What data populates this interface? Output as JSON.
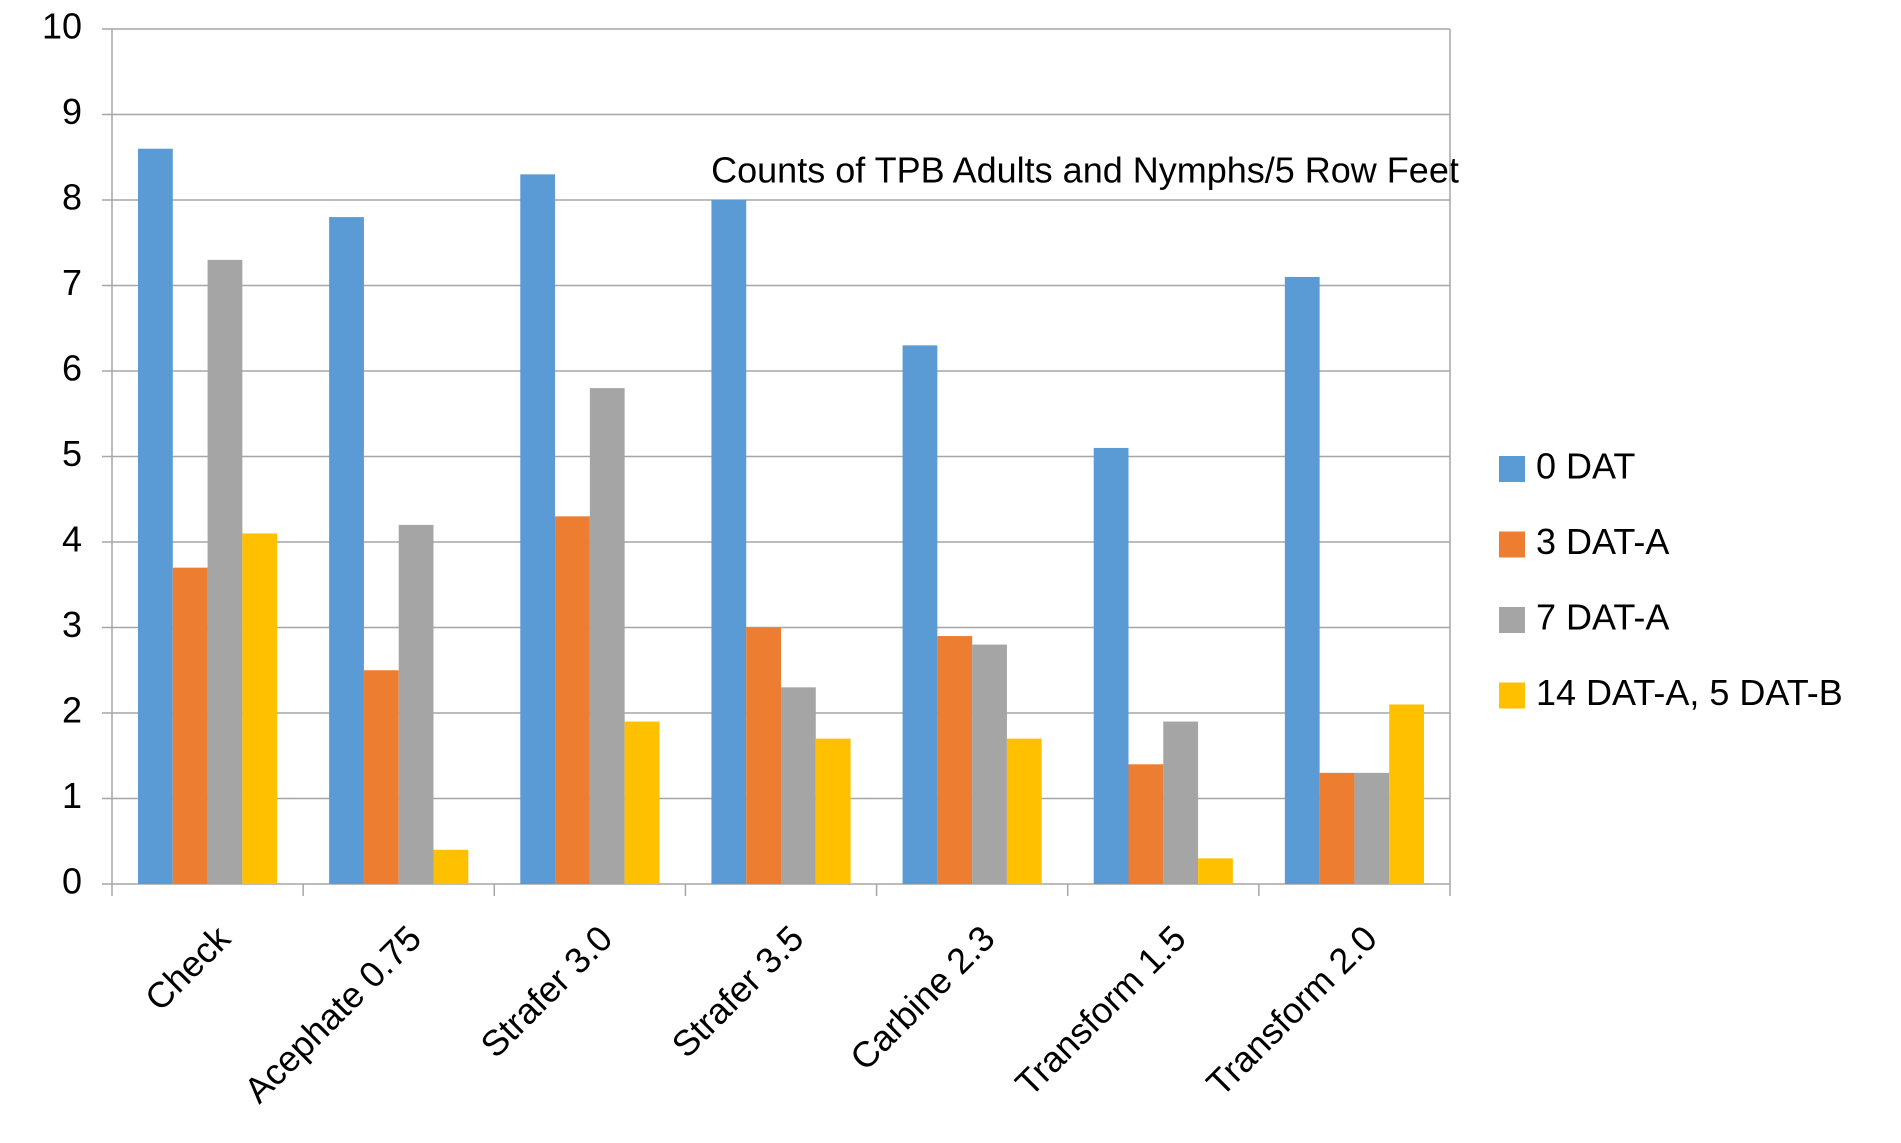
{
  "chart_data": {
    "type": "bar",
    "title": "Counts of TPB Adults and Nymphs/5 Row Feet",
    "categories": [
      "Check",
      "Acephate 0.75",
      "Strafer 3.0",
      "Strafer 3.5",
      "Carbine 2.3",
      "Transform 1.5",
      "Transform 2.0"
    ],
    "series": [
      {
        "name": "0 DAT",
        "color": "#5b9bd5",
        "values": [
          8.6,
          7.8,
          8.3,
          8.0,
          6.3,
          5.1,
          7.1
        ]
      },
      {
        "name": "3 DAT-A",
        "color": "#ed7d31",
        "values": [
          3.7,
          2.5,
          4.3,
          3.0,
          2.9,
          1.4,
          1.3
        ]
      },
      {
        "name": "7 DAT-A",
        "color": "#a5a5a5",
        "values": [
          7.3,
          4.2,
          5.8,
          2.3,
          2.8,
          1.9,
          1.3
        ]
      },
      {
        "name": "14 DAT-A, 5 DAT-B",
        "color": "#ffc000",
        "values": [
          4.1,
          0.4,
          1.9,
          1.7,
          1.7,
          0.3,
          2.1
        ]
      }
    ],
    "ylim": [
      0,
      10
    ],
    "yticks": [
      0,
      1,
      2,
      3,
      4,
      5,
      6,
      7,
      8,
      9,
      10
    ],
    "grid": true,
    "legend": "right"
  }
}
